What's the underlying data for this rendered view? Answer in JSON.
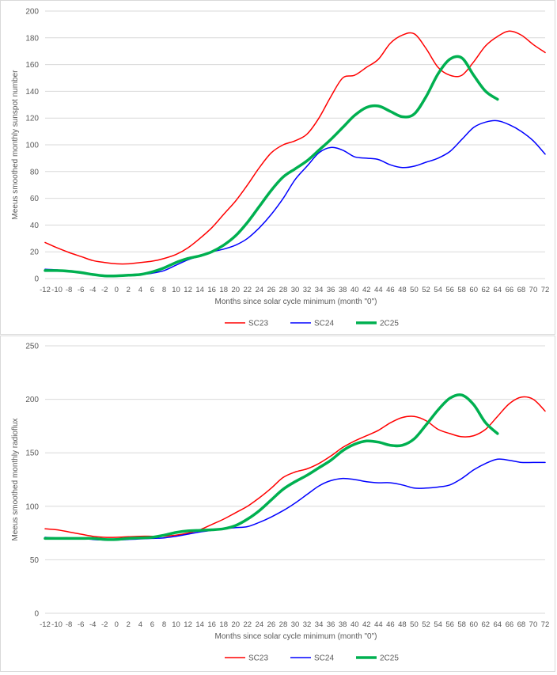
{
  "chart_data": [
    {
      "type": "line",
      "title": "",
      "xlabel": "Months since solar cycle minimum (month \"0\")",
      "ylabel": "Meeus smoothed monthly sunspot number",
      "xlim": [
        -12,
        72
      ],
      "ylim": [
        0,
        200
      ],
      "ytick_step": 20,
      "xtick_labels": [
        "-12",
        "-10",
        "-8",
        "-6",
        "-4",
        "-2",
        "0",
        "2",
        "4",
        "6",
        "8",
        "10",
        "12",
        "14",
        "16",
        "18",
        "20",
        "22",
        "24",
        "26",
        "28",
        "30",
        "32",
        "34",
        "36",
        "38",
        "40",
        "42",
        "44",
        "46",
        "48",
        "50",
        "52",
        "54",
        "56",
        "58",
        "60",
        "62",
        "64",
        "66",
        "68",
        "70",
        "72"
      ],
      "grid": "horizontal",
      "legend_position": "bottom",
      "series": [
        {
          "name": "SC23",
          "color": "#ff0000",
          "width": 1.5,
          "x": [
            -12,
            -10,
            -8,
            -6,
            -4,
            -2,
            0,
            2,
            4,
            6,
            8,
            10,
            12,
            14,
            16,
            18,
            20,
            22,
            24,
            26,
            28,
            30,
            32,
            34,
            36,
            38,
            40,
            42,
            44,
            46,
            48,
            50,
            52,
            54,
            56,
            58,
            60,
            62,
            64,
            66,
            68,
            70,
            72
          ],
          "y": [
            27,
            23,
            19.5,
            16.5,
            13.5,
            12,
            11,
            11,
            12,
            13,
            15,
            18,
            23,
            30,
            38,
            48,
            58,
            70,
            83,
            94,
            100,
            103,
            108,
            120,
            136,
            150,
            152,
            158,
            164,
            176,
            182,
            183,
            172,
            158,
            152,
            152,
            162,
            174,
            181,
            185,
            182,
            175,
            169
          ]
        },
        {
          "name": "SC24",
          "color": "#0000ff",
          "width": 1.5,
          "x": [
            -12,
            -10,
            -8,
            -6,
            -4,
            -2,
            0,
            2,
            4,
            6,
            8,
            10,
            12,
            14,
            16,
            18,
            20,
            22,
            24,
            26,
            28,
            30,
            32,
            34,
            36,
            38,
            40,
            42,
            44,
            46,
            48,
            50,
            52,
            54,
            56,
            58,
            60,
            62,
            64,
            66,
            68,
            70,
            72
          ],
          "y": [
            7,
            6.5,
            5.5,
            4.5,
            3,
            2,
            2,
            2.5,
            3,
            4,
            6,
            10,
            14,
            17,
            20,
            22,
            25,
            30,
            38,
            48,
            60,
            74,
            84,
            94,
            98,
            96,
            91,
            90,
            89,
            85,
            83,
            84,
            87,
            90,
            95,
            104,
            113,
            117,
            118,
            115,
            110,
            103,
            93
          ]
        },
        {
          "name": "2C25",
          "color": "#00b050",
          "width": 3.5,
          "x": [
            -12,
            -10,
            -8,
            -6,
            -4,
            -2,
            0,
            2,
            4,
            6,
            8,
            10,
            12,
            14,
            16,
            18,
            20,
            22,
            24,
            26,
            28,
            30,
            32,
            34,
            36,
            38,
            40,
            42,
            44,
            46,
            48,
            50,
            52,
            54,
            56,
            58,
            60,
            62,
            64
          ],
          "y": [
            6,
            6,
            5.5,
            4.5,
            3,
            2,
            2,
            2.5,
            3,
            5,
            8,
            12,
            15,
            17,
            20,
            25,
            32,
            42,
            54,
            66,
            76,
            82,
            88,
            96,
            104,
            113,
            122,
            128,
            129,
            125,
            121,
            123,
            136,
            153,
            164,
            165,
            152,
            140,
            134
          ]
        }
      ]
    },
    {
      "type": "line",
      "title": "",
      "xlabel": "Months since solar cycle minimum (month \"0\")",
      "ylabel": "Meeus smoothed monthly radioflux",
      "xlim": [
        -12,
        72
      ],
      "ylim": [
        0,
        250
      ],
      "ytick_step": 50,
      "xtick_labels": [
        "-12",
        "-10",
        "-8",
        "-6",
        "-4",
        "-2",
        "0",
        "2",
        "4",
        "6",
        "8",
        "10",
        "12",
        "14",
        "16",
        "18",
        "20",
        "22",
        "24",
        "26",
        "28",
        "30",
        "32",
        "34",
        "36",
        "38",
        "40",
        "42",
        "44",
        "46",
        "48",
        "50",
        "52",
        "54",
        "56",
        "58",
        "60",
        "62",
        "64",
        "66",
        "68",
        "70",
        "72"
      ],
      "grid": "horizontal",
      "legend_position": "bottom",
      "series": [
        {
          "name": "SC23",
          "color": "#ff0000",
          "width": 1.5,
          "x": [
            -12,
            -10,
            -8,
            -6,
            -4,
            -2,
            0,
            2,
            4,
            6,
            8,
            10,
            12,
            14,
            16,
            18,
            20,
            22,
            24,
            26,
            28,
            30,
            32,
            34,
            36,
            38,
            40,
            42,
            44,
            46,
            48,
            50,
            52,
            54,
            56,
            58,
            60,
            62,
            64,
            66,
            68,
            70,
            72
          ],
          "y": [
            79,
            78,
            76,
            74,
            72,
            71,
            71,
            71.5,
            72,
            72,
            72,
            73,
            75,
            78,
            83,
            88,
            94,
            100,
            108,
            117,
            127,
            132,
            135,
            140,
            147,
            155,
            161,
            166,
            171,
            178,
            183,
            184,
            180,
            172,
            168,
            165,
            166,
            172,
            184,
            196,
            202,
            200,
            189
          ]
        },
        {
          "name": "SC24",
          "color": "#0000ff",
          "width": 1.5,
          "x": [
            -12,
            -10,
            -8,
            -6,
            -4,
            -2,
            0,
            2,
            4,
            6,
            8,
            10,
            12,
            14,
            16,
            18,
            20,
            22,
            24,
            26,
            28,
            30,
            32,
            34,
            36,
            38,
            40,
            42,
            44,
            46,
            48,
            50,
            52,
            54,
            56,
            58,
            60,
            62,
            64,
            66,
            68,
            70,
            72
          ],
          "y": [
            71,
            70.5,
            70.5,
            70,
            69,
            68.5,
            68.5,
            69,
            69.5,
            70,
            70.5,
            72,
            74,
            76,
            77.5,
            79,
            80,
            81,
            85,
            90,
            96,
            103,
            111,
            119,
            124,
            126,
            125,
            123,
            122,
            122,
            120,
            117,
            117,
            118,
            120,
            126,
            134,
            140,
            144,
            143,
            141,
            141,
            141
          ]
        },
        {
          "name": "2C25",
          "color": "#00b050",
          "width": 3.5,
          "x": [
            -12,
            -10,
            -8,
            -6,
            -4,
            -2,
            0,
            2,
            4,
            6,
            8,
            10,
            12,
            14,
            16,
            18,
            20,
            22,
            24,
            26,
            28,
            30,
            32,
            34,
            36,
            38,
            40,
            42,
            44,
            46,
            48,
            50,
            52,
            54,
            56,
            58,
            60,
            62,
            64
          ],
          "y": [
            70,
            70,
            70,
            70,
            70,
            69,
            69,
            70,
            70.5,
            71,
            73,
            75.5,
            77,
            77.5,
            78,
            79,
            82,
            88,
            96,
            106,
            116,
            123,
            129,
            136,
            143,
            152,
            158,
            161,
            160,
            157,
            157,
            163,
            176,
            190,
            201,
            204,
            195,
            178,
            168
          ]
        }
      ]
    }
  ]
}
